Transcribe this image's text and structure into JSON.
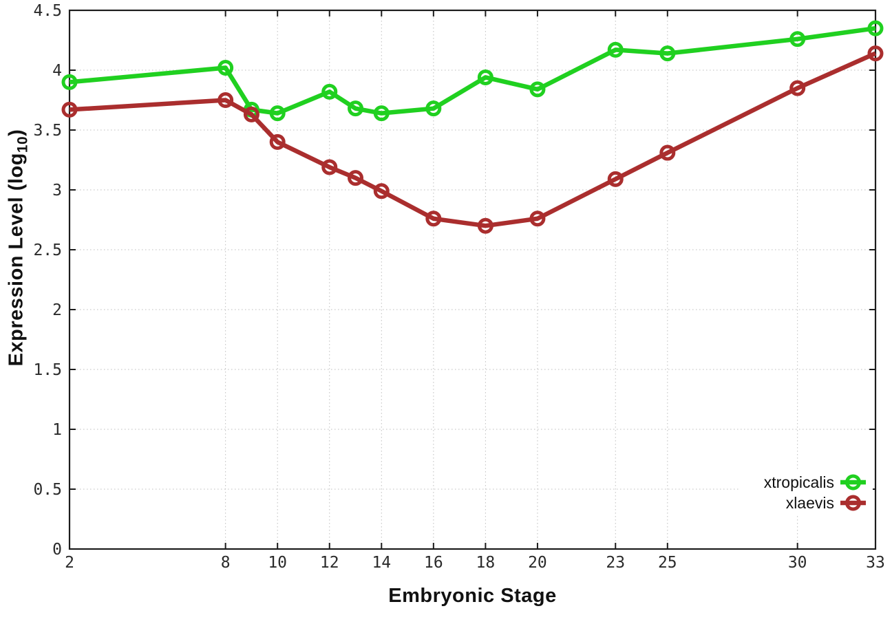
{
  "colors": {
    "background": "#ffffff",
    "grid": "#bdbdbd",
    "axis": "#1c1c1c",
    "text": "#111111"
  },
  "chart_data": {
    "type": "line",
    "title": "",
    "xlabel": "Embryonic Stage",
    "ylabel": {
      "main": "Expression Level (log",
      "sub": "10",
      "end": ")"
    },
    "xlim": [
      2,
      33
    ],
    "ylim": [
      0,
      4.5
    ],
    "x_ticks": [
      2,
      8,
      10,
      12,
      14,
      16,
      18,
      20,
      23,
      25,
      30,
      33
    ],
    "y_ticks": [
      0,
      0.5,
      1,
      1.5,
      2,
      2.5,
      3,
      3.5,
      4,
      4.5
    ],
    "grid": true,
    "legend_position": "inside-bottom-right",
    "marker": "open-circle",
    "stages": [
      2,
      8,
      9,
      10,
      12,
      13,
      14,
      16,
      18,
      20,
      23,
      25,
      30,
      33
    ],
    "series": [
      {
        "name": "xtropicalis",
        "color": "#20d020",
        "values": [
          3.9,
          4.02,
          3.67,
          3.64,
          3.82,
          3.68,
          3.64,
          3.68,
          3.94,
          3.84,
          4.17,
          4.14,
          4.26,
          4.35
        ]
      },
      {
        "name": "xlaevis",
        "color": "#aa2e2e",
        "values": [
          3.67,
          3.75,
          3.63,
          3.4,
          3.19,
          3.1,
          2.99,
          2.76,
          2.7,
          2.76,
          3.09,
          3.31,
          3.85,
          4.14
        ]
      }
    ]
  }
}
